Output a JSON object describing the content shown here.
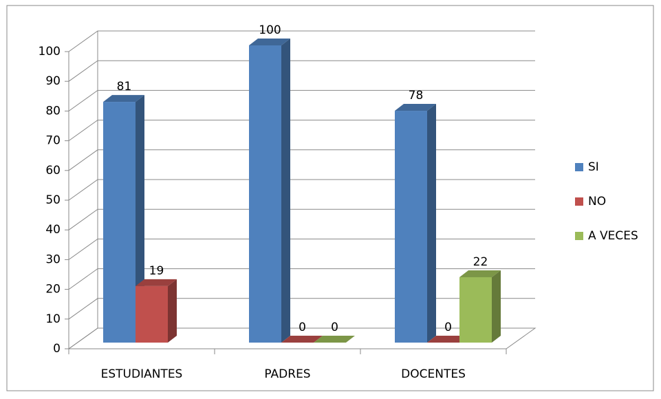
{
  "chart_data": {
    "type": "bar3d",
    "categories": [
      "ESTUDIANTES",
      "PADRES",
      "DOCENTES"
    ],
    "series": [
      {
        "name": "SI",
        "color": "#4f81bd",
        "values": [
          81,
          100,
          78
        ]
      },
      {
        "name": "NO",
        "color": "#c0504d",
        "values": [
          19,
          0,
          0
        ]
      },
      {
        "name": "A VECES",
        "color": "#9bbb59",
        "values": [
          null,
          0,
          22
        ]
      }
    ],
    "ylim": [
      0,
      100
    ],
    "yticks": [
      0,
      10,
      20,
      30,
      40,
      50,
      60,
      70,
      80,
      90,
      100
    ],
    "grid": true,
    "legend": "right"
  }
}
